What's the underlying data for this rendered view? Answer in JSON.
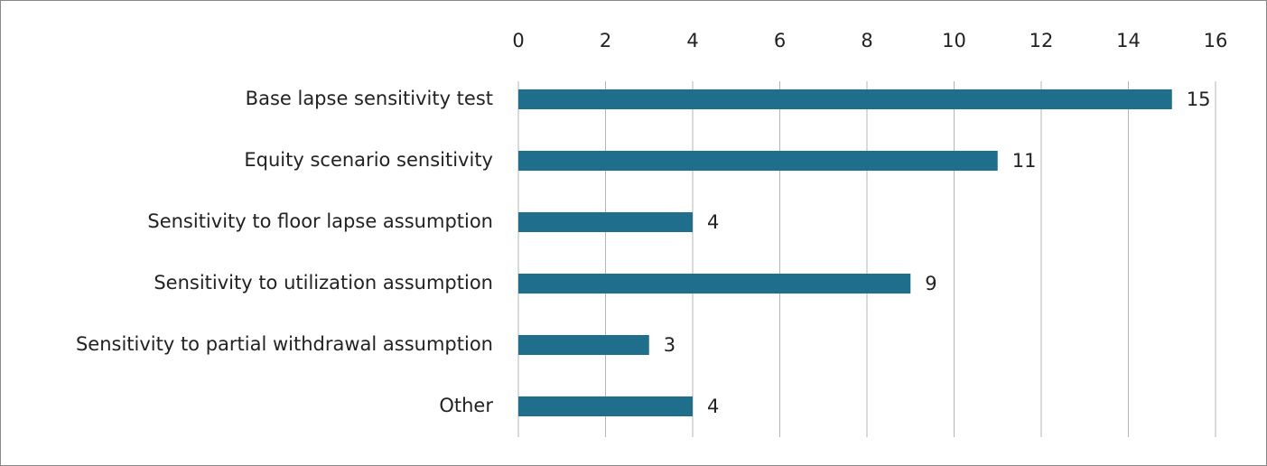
{
  "chart_data": {
    "type": "bar",
    "orientation": "horizontal",
    "categories": [
      "Base lapse sensitivity test",
      "Equity scenario sensitivity",
      "Sensitivity to floor lapse assumption",
      "Sensitivity to utilization assumption",
      "Sensitivity to partial withdrawal assumption",
      "Other"
    ],
    "values": [
      15,
      11,
      4,
      9,
      3,
      4
    ],
    "color": "#1f6e8c",
    "xlim": [
      0,
      16
    ],
    "xticks": [
      0,
      2,
      4,
      6,
      8,
      10,
      12,
      14,
      16
    ],
    "grid": true
  }
}
